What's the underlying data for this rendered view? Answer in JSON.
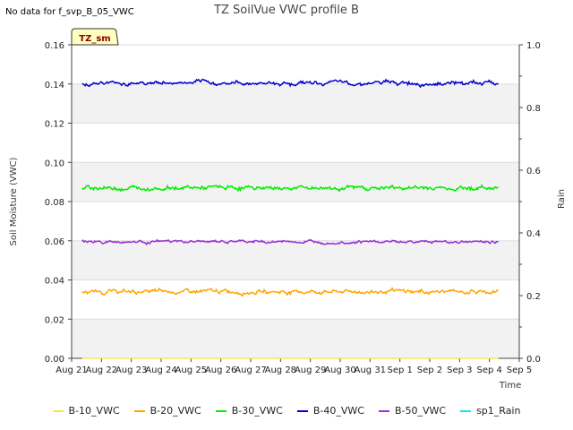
{
  "note": "No data for f_svp_B_05_VWC",
  "chart_data": {
    "type": "line",
    "title": "TZ SoilVue VWC profile B",
    "xlabel": "Time",
    "ylabel": "Soil Moisture (VWC)",
    "y2label": "Rain",
    "annotation": "TZ_sm",
    "x_ticks": [
      "Aug 21",
      "Aug 22",
      "Aug 23",
      "Aug 24",
      "Aug 25",
      "Aug 26",
      "Aug 27",
      "Aug 28",
      "Aug 29",
      "Aug 30",
      "Aug 31",
      "Sep 1",
      "Sep 2",
      "Sep 3",
      "Sep 4",
      "Sep 5"
    ],
    "x_range_days": [
      0,
      15
    ],
    "x_data_end_day": 14.3,
    "ylim": [
      0,
      0.16
    ],
    "y_ticks": [
      "0.00",
      "0.02",
      "0.04",
      "0.06",
      "0.08",
      "0.10",
      "0.12",
      "0.14",
      "0.16"
    ],
    "y2lim": [
      0,
      1.0
    ],
    "y2_ticks": [
      "0.0",
      "0.2",
      "0.4",
      "0.6",
      "0.8",
      "1.0"
    ],
    "grid": true,
    "legend_placement": "bottom",
    "series": [
      {
        "name": "B-10_VWC",
        "color": "#f5e642",
        "level": 0.0,
        "noise": 0.0
      },
      {
        "name": "B-20_VWC",
        "color": "#ffa500",
        "level": 0.034,
        "noise": 0.0012
      },
      {
        "name": "B-30_VWC",
        "color": "#00ee00",
        "level": 0.087,
        "noise": 0.0012
      },
      {
        "name": "B-40_VWC",
        "color": "#0000cc",
        "level": 0.1405,
        "noise": 0.0012
      },
      {
        "name": "B-50_VWC",
        "color": "#9b30d9",
        "level": 0.0595,
        "noise": 0.0008
      },
      {
        "name": "sp1_Rain",
        "color": "#19e3f0",
        "level": null,
        "noise": 0.0
      }
    ]
  }
}
